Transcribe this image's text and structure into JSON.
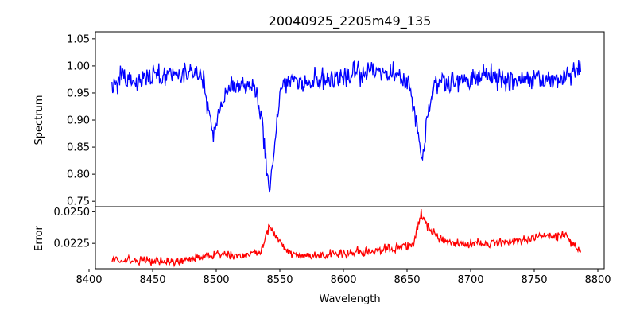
{
  "chart_data": {
    "type": "line",
    "title": "20040925_2205m49_135",
    "xlabel": "Wavelength",
    "xlim": [
      8405,
      8805
    ],
    "xticks": [
      8400,
      8450,
      8500,
      8550,
      8600,
      8650,
      8700,
      8750,
      8800
    ],
    "grid": false,
    "legend": "none",
    "panels": [
      {
        "ylabel": "Spectrum",
        "ylim": [
          0.74,
          1.063
        ],
        "yticks": [
          0.75,
          0.8,
          0.85,
          0.9,
          0.95,
          1.0,
          1.05
        ],
        "ytick_labels": [
          "0.75",
          "0.80",
          "0.85",
          "0.90",
          "0.95",
          "1.00",
          "1.05"
        ],
        "series": [
          {
            "color": "#0000ff",
            "x_start": 8418,
            "x_end": 8787,
            "continuum": 0.98,
            "noise": 0.02,
            "absorption_lines": [
              {
                "center": 8498,
                "depth": 0.1,
                "width": 2.2
              },
              {
                "center": 8542,
                "depth": 0.22,
                "width": 2.5
              },
              {
                "center": 8662,
                "depth": 0.16,
                "width": 2.4
              }
            ],
            "sampled_points": [
              [
                8418,
                0.96
              ],
              [
                8425,
                0.98
              ],
              [
                8440,
                0.97
              ],
              [
                8460,
                0.99
              ],
              [
                8480,
                1.0
              ],
              [
                8490,
                0.98
              ],
              [
                8495,
                0.9
              ],
              [
                8498,
                0.87
              ],
              [
                8502,
                0.92
              ],
              [
                8510,
                0.96
              ],
              [
                8520,
                0.97
              ],
              [
                8530,
                0.96
              ],
              [
                8536,
                0.9
              ],
              [
                8540,
                0.8
              ],
              [
                8542,
                0.76
              ],
              [
                8545,
                0.83
              ],
              [
                8550,
                0.95
              ],
              [
                8560,
                0.98
              ],
              [
                8580,
                0.97
              ],
              [
                8600,
                0.98
              ],
              [
                8620,
                1.0
              ],
              [
                8640,
                0.99
              ],
              [
                8652,
                0.97
              ],
              [
                8658,
                0.88
              ],
              [
                8662,
                0.82
              ],
              [
                8666,
                0.9
              ],
              [
                8672,
                0.97
              ],
              [
                8690,
                0.97
              ],
              [
                8710,
                0.98
              ],
              [
                8730,
                0.97
              ],
              [
                8750,
                0.98
              ],
              [
                8770,
                0.97
              ],
              [
                8787,
                1.01
              ]
            ]
          }
        ]
      },
      {
        "ylabel": "Error",
        "ylim": [
          0.0205,
          0.0254
        ],
        "yticks": [
          0.0225,
          0.025
        ],
        "ytick_labels": [
          "0.0225",
          "0.0250"
        ],
        "series": [
          {
            "color": "#ff0000",
            "x_start": 8418,
            "x_end": 8787,
            "noise": 0.00035,
            "sampled_points": [
              [
                8418,
                0.0212
              ],
              [
                8430,
                0.0212
              ],
              [
                8450,
                0.0211
              ],
              [
                8470,
                0.0211
              ],
              [
                8490,
                0.0214
              ],
              [
                8500,
                0.0216
              ],
              [
                8520,
                0.0215
              ],
              [
                8535,
                0.0218
              ],
              [
                8542,
                0.024
              ],
              [
                8548,
                0.0228
              ],
              [
                8560,
                0.0216
              ],
              [
                8580,
                0.0215
              ],
              [
                8600,
                0.0217
              ],
              [
                8620,
                0.0219
              ],
              [
                8640,
                0.0221
              ],
              [
                8655,
                0.0225
              ],
              [
                8661,
                0.0248
              ],
              [
                8668,
                0.0235
              ],
              [
                8680,
                0.0226
              ],
              [
                8700,
                0.0224
              ],
              [
                8720,
                0.0226
              ],
              [
                8740,
                0.0228
              ],
              [
                8760,
                0.0231
              ],
              [
                8775,
                0.0232
              ],
              [
                8787,
                0.0216
              ]
            ]
          }
        ]
      }
    ]
  }
}
